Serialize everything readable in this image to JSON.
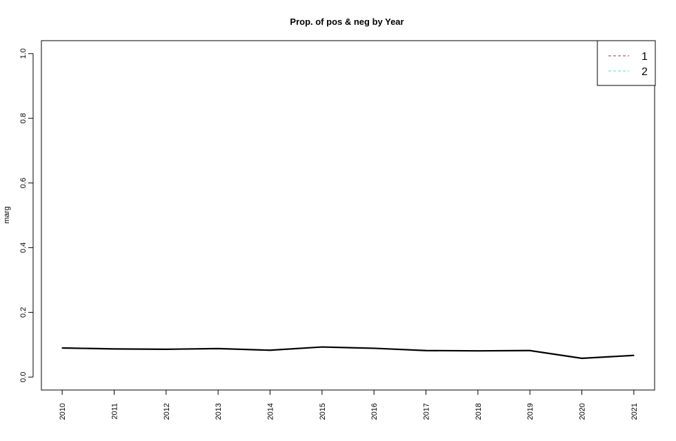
{
  "chart_data": {
    "type": "line",
    "title": "Prop. of pos & neg by Year",
    "xlabel": "",
    "ylabel": "marg",
    "x": [
      2010,
      2011,
      2012,
      2013,
      2014,
      2015,
      2016,
      2017,
      2018,
      2019,
      2020,
      2021
    ],
    "xlim": [
      2009.6,
      2021.4
    ],
    "ylim": [
      -0.04,
      1.04
    ],
    "yticks": [
      0.0,
      0.2,
      0.4,
      0.6,
      0.8,
      1.0
    ],
    "ytick_labels": [
      "0.0",
      "0.2",
      "0.4",
      "0.6",
      "0.8",
      "1.0"
    ],
    "xtick_labels": [
      "2010",
      "2011",
      "2012",
      "2013",
      "2014",
      "2015",
      "2016",
      "2017",
      "2018",
      "2019",
      "2020",
      "2021"
    ],
    "grid": false,
    "legend_position": "top-right",
    "line_color": "#000000",
    "series": [
      {
        "values": [
          0.09,
          0.087,
          0.086,
          0.088,
          0.083,
          0.093,
          0.089,
          0.082,
          0.081,
          0.082,
          0.058,
          0.067
        ]
      }
    ],
    "legend": [
      {
        "label": "1",
        "color": "#8b3a3a",
        "dash": true
      },
      {
        "label": "2",
        "color": "#40e0d0",
        "dash": true
      }
    ]
  }
}
